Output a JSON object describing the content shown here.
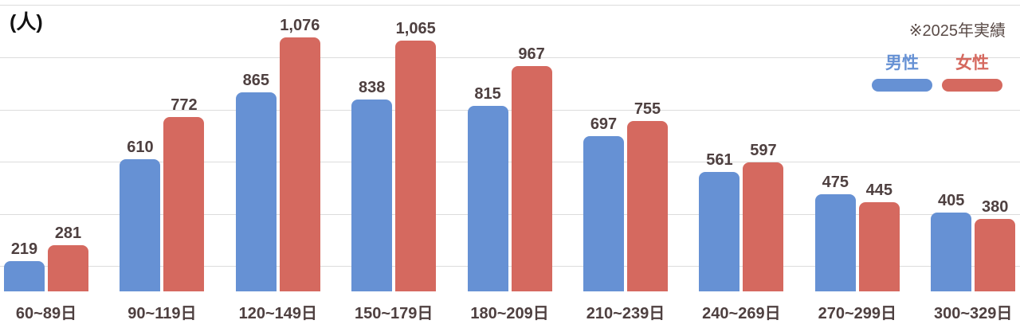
{
  "header": {
    "unit_label": "(人)",
    "note": "※2025年実績"
  },
  "legend": {
    "male_label": "男性",
    "female_label": "女性"
  },
  "colors": {
    "male": "#6691d4",
    "female": "#d5695f",
    "gridline": "#dcdcdc",
    "label_text": "#4e4040",
    "note_text": "#5a4b47",
    "unit_text": "#121212"
  },
  "chart_data": {
    "type": "bar",
    "title": "",
    "unit_label": "(人)",
    "note": "※2025年実績",
    "categories": [
      "60~89日",
      "90~119日",
      "120~149日",
      "150~179日",
      "180~209日",
      "210~239日",
      "240~269日",
      "270~299日",
      "300~329日"
    ],
    "series": [
      {
        "name": "男性",
        "color": "#6691d4",
        "values": [
          219,
          610,
          865,
          838,
          815,
          697,
          561,
          475,
          405
        ]
      },
      {
        "name": "女性",
        "color": "#d5695f",
        "values": [
          281,
          772,
          1076,
          1065,
          967,
          755,
          597,
          445,
          380
        ]
      }
    ],
    "value_labels": true,
    "value_label_format": "thousands-comma",
    "gridlines": {
      "values": [
        200,
        400,
        600,
        800,
        1000,
        1200
      ],
      "color": "#dcdcdc"
    },
    "ylim": [
      0,
      1200
    ],
    "y_axis_visible_min": 100,
    "legend_position": "top-right",
    "xlabel": "",
    "ylabel": "(人)"
  }
}
